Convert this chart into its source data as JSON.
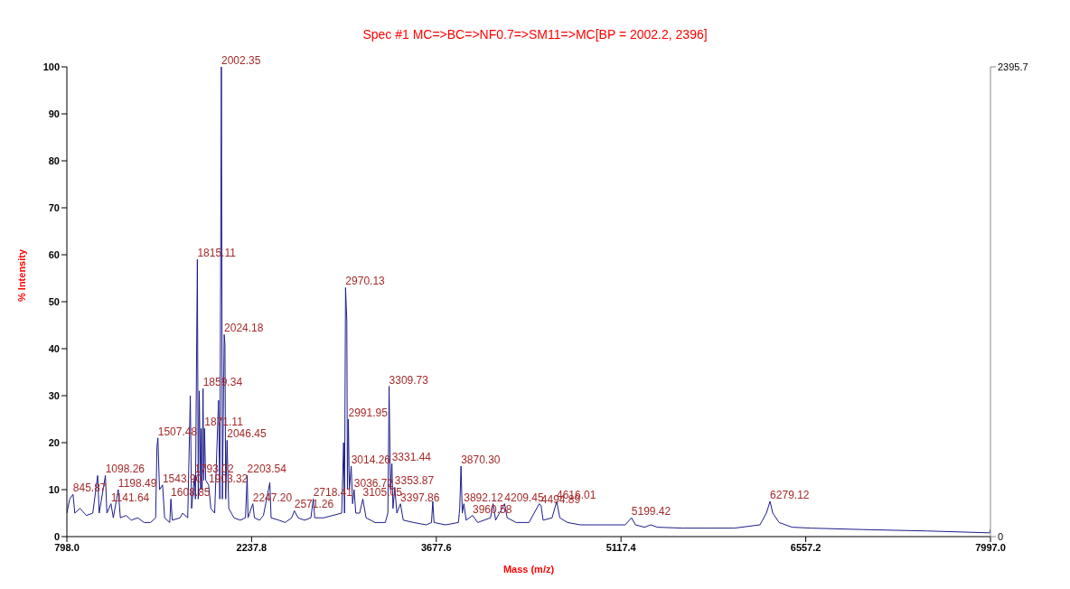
{
  "chart_data": {
    "type": "line",
    "title": "Spec #1 MC=>BC=>NF0.7=>SM11=>MC[BP = 2002.2, 2396]",
    "xlabel": "Mass (m/z)",
    "ylabel": "% Intensity",
    "xlim": [
      798,
      7997
    ],
    "xticks": [
      {
        "value": 798,
        "label": "798.0"
      },
      2237.8,
      3677.6,
      5117.4,
      6557.2,
      {
        "value": 7997,
        "label": "7997.0"
      }
    ],
    "ylim": [
      0,
      100
    ],
    "yticks": [
      0,
      10,
      20,
      30,
      40,
      50,
      60,
      70,
      80,
      90,
      100
    ],
    "y2lim": [
      0,
      2395.7
    ],
    "y2ticks": [
      0,
      2395.7
    ],
    "grid": false,
    "legend": false,
    "marker": "none",
    "line_style": "solid",
    "series": [
      {
        "color": "#1c1c8a",
        "x": [
          798,
          820,
          845.87,
          860,
          900,
          950,
          1000,
          1038,
          1050,
          1098.26,
          1110,
          1141.64,
          1160,
          1198.49,
          1215,
          1260,
          1300,
          1350,
          1400,
          1450,
          1490,
          1500,
          1507.48,
          1520,
          1543.9,
          1560,
          1600,
          1608.85,
          1620,
          1680,
          1700,
          1740,
          1760,
          1770,
          1793.02,
          1800,
          1815.11,
          1822,
          1830,
          1840,
          1845,
          1852,
          1859.34,
          1865,
          1871.11,
          1880,
          1903.32,
          1920,
          1950,
          1980,
          1990,
          2002.35,
          2010,
          2024.18,
          2030,
          2036,
          2046.45,
          2060,
          2100,
          2150,
          2190,
          2203.54,
          2210,
          2247.2,
          2260,
          2300,
          2330,
          2380,
          2390,
          2450,
          2500,
          2550,
          2571.26,
          2600,
          2650,
          2700,
          2718.41,
          2730,
          2800,
          2940,
          2955,
          2962,
          2970.13,
          2980,
          2985,
          2991.95,
          3000,
          3014.26,
          3025,
          3036.72,
          3050,
          3080,
          3105.05,
          3130,
          3200,
          3280,
          3300,
          3309.73,
          3320,
          3331.44,
          3340,
          3353.87,
          3370,
          3397.86,
          3420,
          3500,
          3600,
          3640,
          3650,
          3660,
          3750,
          3850,
          3860,
          3870.3,
          3880,
          3892.12,
          3910,
          3960.58,
          4000,
          4100,
          4120,
          4140,
          4209.45,
          4230,
          4300,
          4400,
          4480,
          4494.89,
          4510,
          4580,
          4616.01,
          4640,
          4700,
          4800,
          5000,
          5150,
          5199.42,
          5230,
          5300,
          5350,
          5400,
          5600,
          5800,
          6000,
          6200,
          6250,
          6279.12,
          6300,
          6350,
          6450,
          6600,
          7000,
          7500,
          7990,
          7997
        ],
        "values": [
          5,
          8,
          9,
          5,
          6,
          4.5,
          5,
          13,
          5,
          13,
          5,
          7,
          4,
          10,
          4,
          4.5,
          3.5,
          4,
          3,
          3,
          4,
          19,
          21,
          10,
          11,
          4,
          3,
          8,
          3.5,
          4,
          5,
          4,
          30,
          6,
          13,
          8,
          59,
          8,
          31,
          10,
          23,
          10,
          31.5,
          12,
          23,
          12,
          11,
          6,
          5,
          29,
          8,
          100,
          8,
          43,
          41,
          8,
          20.5,
          6,
          4,
          3.5,
          4,
          13,
          4,
          7,
          4,
          3.5,
          4.5,
          11.5,
          4,
          3.5,
          3,
          4,
          5.5,
          4,
          3.5,
          4,
          8,
          4,
          4,
          5,
          20,
          5,
          53,
          46,
          10,
          25,
          10,
          15,
          7,
          10,
          5,
          5,
          8,
          4,
          3,
          3,
          5,
          32,
          10,
          15.5,
          6,
          10.5,
          5,
          7,
          3.5,
          3,
          2.5,
          3,
          7.5,
          3,
          2.5,
          3,
          6,
          15,
          5,
          7,
          3.5,
          4.5,
          3,
          4,
          7,
          3.5,
          7,
          4,
          3,
          3,
          7,
          6.5,
          3.5,
          4,
          7.5,
          4,
          3,
          2.5,
          2.5,
          2.5,
          4,
          2.5,
          2,
          2.5,
          2,
          1.8,
          1.8,
          1.8,
          2.5,
          5,
          7.5,
          5,
          3,
          2,
          1.8,
          1.5,
          1.2,
          0.8,
          1.5
        ]
      }
    ],
    "annotations": [
      {
        "text": "845.87",
        "x": 845.87,
        "y": 9
      },
      {
        "text": "1098.26",
        "x": 1098.26,
        "y": 13
      },
      {
        "text": "1141.64",
        "x": 1141.64,
        "y": 7
      },
      {
        "text": "1198.49",
        "x": 1198.49,
        "y": 10
      },
      {
        "text": "1507.48",
        "x": 1507.48,
        "y": 21
      },
      {
        "text": "1543.90",
        "x": 1543.9,
        "y": 11
      },
      {
        "text": "1608.85",
        "x": 1608.85,
        "y": 8
      },
      {
        "text": "1793.02",
        "x": 1793.02,
        "y": 13
      },
      {
        "text": "1815.11",
        "x": 1815.11,
        "y": 59
      },
      {
        "text": "1859.34",
        "x": 1859.34,
        "y": 31.5
      },
      {
        "text": "1871.11",
        "x": 1871.11,
        "y": 23
      },
      {
        "text": "1903.32",
        "x": 1903.32,
        "y": 11
      },
      {
        "text": "2002.35",
        "x": 2002.35,
        "y": 100
      },
      {
        "text": "2024.18",
        "x": 2024.18,
        "y": 43
      },
      {
        "text": "2046.45",
        "x": 2046.45,
        "y": 20.5
      },
      {
        "text": "2203.54",
        "x": 2203.54,
        "y": 13
      },
      {
        "text": "2247.20",
        "x": 2247.2,
        "y": 7
      },
      {
        "text": "2571.26",
        "x": 2571.26,
        "y": 5.5
      },
      {
        "text": "2718.41",
        "x": 2718.41,
        "y": 8
      },
      {
        "text": "2970.13",
        "x": 2970.13,
        "y": 53
      },
      {
        "text": "2991.95",
        "x": 2991.95,
        "y": 25
      },
      {
        "text": "3014.26",
        "x": 3014.26,
        "y": 15
      },
      {
        "text": "3036.72",
        "x": 3036.72,
        "y": 10
      },
      {
        "text": "3105.05",
        "x": 3105.05,
        "y": 8
      },
      {
        "text": "3309.73",
        "x": 3309.73,
        "y": 32
      },
      {
        "text": "3331.44",
        "x": 3331.44,
        "y": 15.5
      },
      {
        "text": "3353.87",
        "x": 3353.87,
        "y": 10.5
      },
      {
        "text": "3397.86",
        "x": 3397.86,
        "y": 7
      },
      {
        "text": "3870.30",
        "x": 3870.3,
        "y": 15
      },
      {
        "text": "3892.12",
        "x": 3892.12,
        "y": 7
      },
      {
        "text": "3960.58",
        "x": 3960.58,
        "y": 4.5
      },
      {
        "text": "4209.45",
        "x": 4209.45,
        "y": 7
      },
      {
        "text": "4494.89",
        "x": 4494.89,
        "y": 6.5
      },
      {
        "text": "4616.01",
        "x": 4616.01,
        "y": 7.5
      },
      {
        "text": "5199.42",
        "x": 5199.42,
        "y": 4
      },
      {
        "text": "6279.12",
        "x": 6279.12,
        "y": 7.5
      }
    ]
  }
}
